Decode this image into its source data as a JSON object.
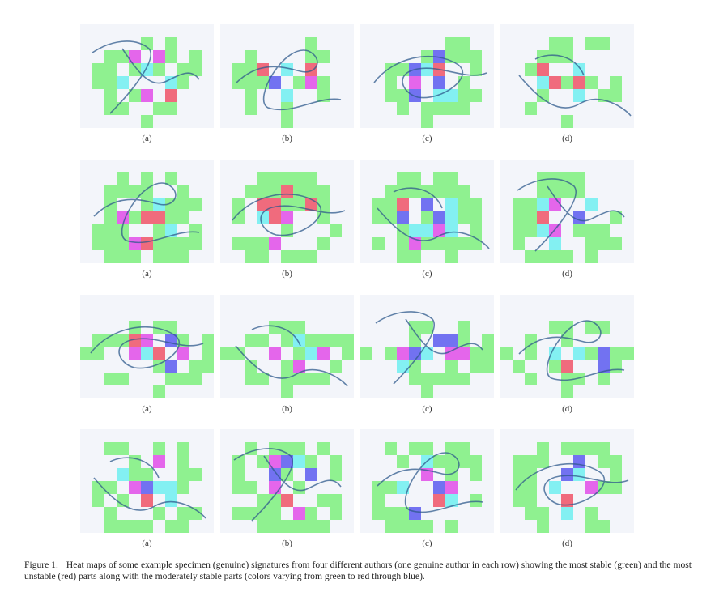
{
  "figure": {
    "label": "Figure 1.",
    "caption": "Heat maps of some example specimen (genuine) signatures from four different authors (one genuine author in each row) showing the most stable (green) and the most unstable (red) parts along with the moderately stable parts (colors varying from green to red through blue)."
  },
  "colors": {
    "stable": "#7df07d",
    "moderate_blue": "#5a5aee",
    "cyan": "#6feef0",
    "magenta": "#e04ce8",
    "unstable": "#ee5266",
    "panel_background": "#f3f5fa",
    "ink": "#2f5a8c"
  },
  "rows": [
    {
      "author": "author-1",
      "panels": [
        "(a)",
        "(b)",
        "(c)",
        "(d)"
      ]
    },
    {
      "author": "author-2",
      "panels": [
        "(a)",
        "(b)",
        "(c)",
        "(d)"
      ]
    },
    {
      "author": "author-3",
      "panels": [
        "(a)",
        "(b)",
        "(c)",
        "(d)"
      ]
    },
    {
      "author": "author-4",
      "panels": [
        "(a)",
        "(b)",
        "(c)",
        "(d)"
      ]
    }
  ]
}
